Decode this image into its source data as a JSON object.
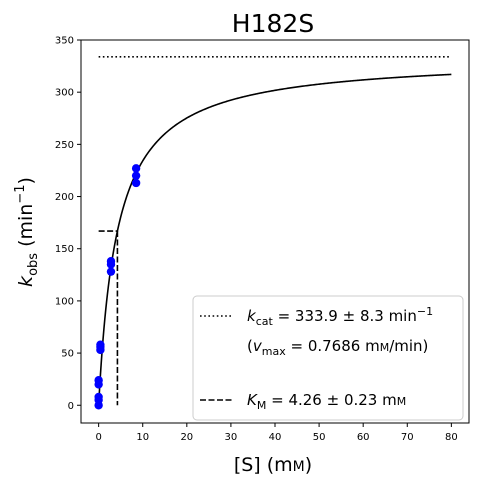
{
  "chart_data": {
    "type": "scatter",
    "title": "H182S",
    "xlabel": {
      "main": "[S] (m",
      "unit_smallcaps": "M",
      "close": ")"
    },
    "ylabel": {
      "k": "k",
      "sub": "obs",
      "rest": " (min",
      "sup": "−1",
      "close": ")"
    },
    "xlim": [
      -4,
      84
    ],
    "ylim": [
      -17,
      350
    ],
    "x_ticks": [
      0,
      10,
      20,
      30,
      40,
      50,
      60,
      70,
      80
    ],
    "y_ticks": [
      0,
      50,
      100,
      150,
      200,
      250,
      300,
      350
    ],
    "grid": false,
    "legend_position": "lower right",
    "series": [
      {
        "kind": "points",
        "color": "#0000ff",
        "x": [
          0,
          0,
          0,
          0,
          0,
          0.4,
          0.4,
          0.4,
          2.8,
          2.8,
          2.8,
          8.5,
          8.5,
          8.5
        ],
        "y": [
          0,
          5,
          8,
          20,
          24,
          53,
          56,
          58,
          128,
          135,
          138,
          213,
          220,
          227
        ]
      },
      {
        "kind": "fit",
        "model": "michaelis-menten",
        "kcat": 333.9,
        "km": 4.26,
        "x_range": [
          0,
          80
        ],
        "color": "#000000"
      },
      {
        "kind": "hline-dotted",
        "y": 333.9,
        "x_range": [
          0,
          80
        ],
        "color": "#000000"
      },
      {
        "kind": "km-marker-dashed",
        "x": 4.26,
        "y": 166.95,
        "x_start": 0,
        "color": "#000000"
      }
    ],
    "legend": [
      {
        "style": "dotted",
        "sym": "k",
        "sub": "cat",
        "text": " = 333.9 ± 8.3 min",
        "sup": "−1"
      },
      {
        "style": "none",
        "open": "(",
        "sym": "v",
        "sub": "max",
        "text": " = 0.7686 m",
        "unit_smallcaps": "M",
        "tail": "/min)"
      },
      {
        "style": "dashed",
        "sym": "K",
        "sub": "M",
        "text": " = 4.26 ± 0.23 m",
        "unit_smallcaps": "M"
      }
    ]
  }
}
